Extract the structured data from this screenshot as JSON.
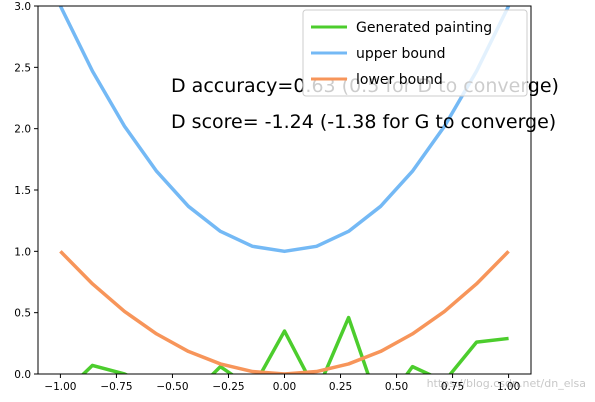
{
  "chart_data": {
    "type": "line",
    "xlim": [
      -1.1,
      1.1
    ],
    "ylim": [
      0,
      3.0
    ],
    "grid": false,
    "legend_position": "top-right",
    "x": [
      -1.0,
      -0.857,
      -0.714,
      -0.571,
      -0.429,
      -0.286,
      -0.143,
      0.0,
      0.143,
      0.286,
      0.429,
      0.571,
      0.714,
      0.857,
      1.0
    ],
    "series": [
      {
        "name": "Generated painting",
        "color": "#4ccd2d",
        "values": [
          -0.18,
          0.07,
          0.0,
          -0.12,
          -0.2,
          0.06,
          -0.12,
          0.35,
          -0.15,
          0.46,
          -0.3,
          0.06,
          -0.06,
          0.26,
          0.29
        ]
      },
      {
        "name": "upper bound",
        "color": "#74b9f5",
        "values": [
          3.0,
          2.469,
          2.02,
          1.653,
          1.367,
          1.163,
          1.041,
          1.0,
          1.041,
          1.163,
          1.367,
          1.653,
          2.02,
          2.469,
          3.0
        ]
      },
      {
        "name": "lower bound",
        "color": "#f7955a",
        "values": [
          1.0,
          0.735,
          0.51,
          0.327,
          0.184,
          0.082,
          0.02,
          0.0,
          0.02,
          0.082,
          0.184,
          0.327,
          0.51,
          0.735,
          1.0
        ]
      }
    ],
    "x_ticks": [
      -1.0,
      -0.75,
      -0.5,
      -0.25,
      0.0,
      0.25,
      0.5,
      0.75,
      1.0
    ],
    "x_tick_labels": [
      "−1.00",
      "−0.75",
      "−0.50",
      "−0.25",
      "0.00",
      "0.25",
      "0.50",
      "0.75",
      "1.00"
    ],
    "y_ticks": [
      0.0,
      0.5,
      1.0,
      1.5,
      2.0,
      2.5,
      3.0
    ],
    "y_tick_labels": [
      "0.0",
      "0.5",
      "1.0",
      "1.5",
      "2.0",
      "2.5",
      "3.0"
    ],
    "annotations": [
      "D accuracy=0.63 (0.5 for D to converge)",
      "D score= -1.24 (-1.38 for G to converge)"
    ]
  },
  "watermark": "https://blog.csdn.net/dn_elsa"
}
